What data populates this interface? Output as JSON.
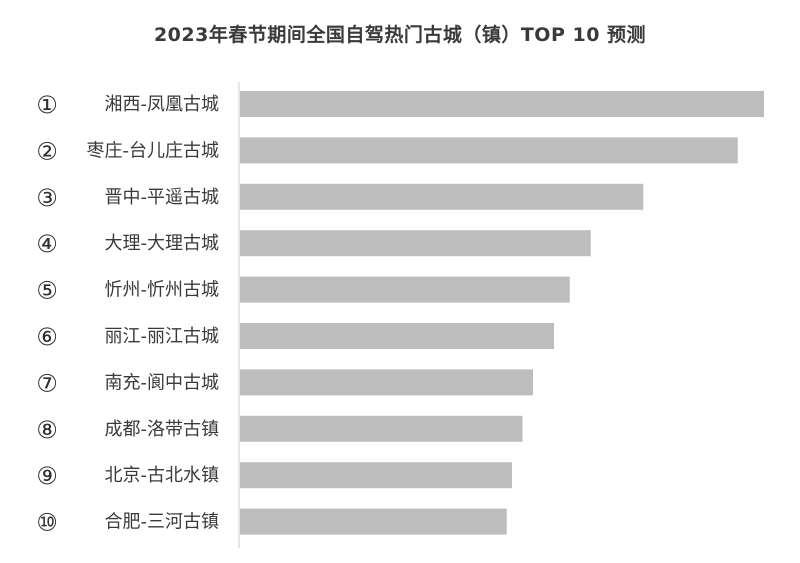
{
  "chart_data": {
    "type": "bar",
    "orientation": "horizontal",
    "title": "2023年春节期间全国自驾热门古城（镇）TOP 10 预测",
    "ranks": [
      "①",
      "②",
      "③",
      "④",
      "⑤",
      "⑥",
      "⑦",
      "⑧",
      "⑨",
      "⑩"
    ],
    "categories": [
      "湘西-凤凰古城",
      "枣庄-台儿庄古城",
      "晋中-平遥古城",
      "大理-大理古城",
      "忻州-忻州古城",
      "丽江-丽江古城",
      "南充-阆中古城",
      "成都-洛带古镇",
      "北京-古北水镇",
      "合肥-三河古镇"
    ],
    "values": [
      100,
      95,
      77,
      67,
      63,
      60,
      56,
      54,
      52,
      51
    ],
    "xlim": [
      0,
      100
    ],
    "bar_color": "#bdbdbd",
    "axis_color": "#cccccc",
    "grid": false,
    "legend": "none"
  }
}
